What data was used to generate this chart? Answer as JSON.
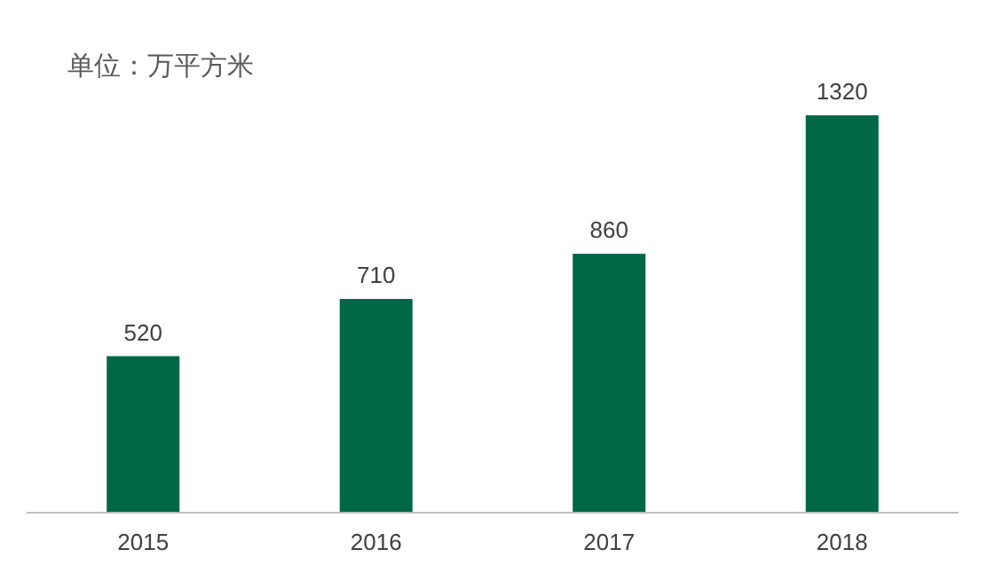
{
  "chart_data": {
    "type": "bar",
    "title": "单位：万平方米",
    "categories": [
      "2015",
      "2016",
      "2017",
      "2018"
    ],
    "values": [
      520,
      710,
      860,
      1320
    ],
    "color": "#006747",
    "data_labels": true
  }
}
